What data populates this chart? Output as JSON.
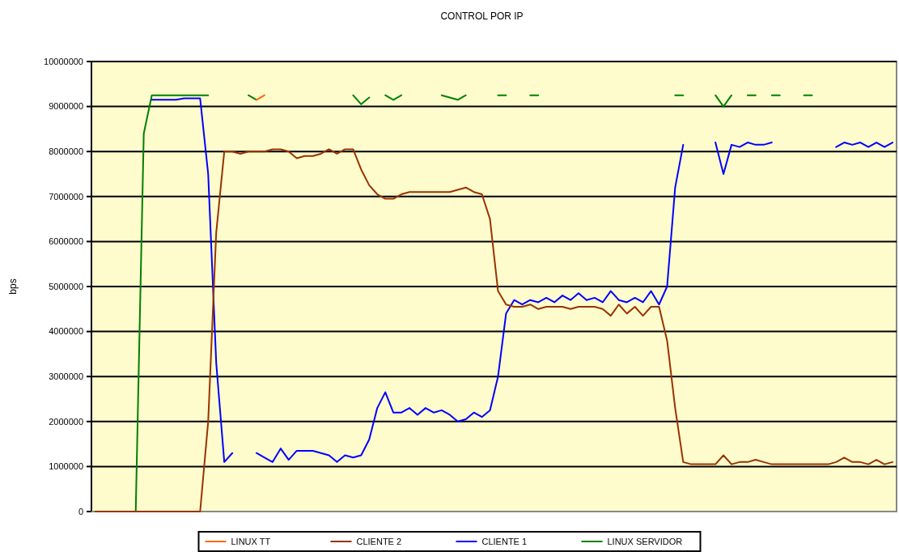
{
  "chart_data": {
    "type": "line",
    "title": "CONTROL POR IP",
    "ylabel": "bps",
    "categories": [
      null,
      null,
      null,
      null,
      null,
      null,
      null,
      null,
      null,
      null,
      null,
      null,
      null,
      null,
      null,
      null,
      null,
      null,
      null,
      null,
      null,
      null,
      null,
      null,
      null,
      null,
      null,
      null,
      null,
      null,
      null,
      null,
      null,
      null,
      null,
      null,
      null,
      null,
      null,
      null,
      null,
      null,
      null,
      null,
      null,
      null,
      null,
      null,
      null,
      null,
      null,
      null,
      null,
      null,
      null,
      null,
      null,
      null,
      null,
      null,
      null,
      null,
      null,
      null,
      null,
      null,
      null,
      null,
      null,
      null,
      null,
      null,
      null,
      null,
      null,
      null,
      null,
      null,
      null,
      null,
      null,
      null,
      null,
      null,
      null,
      null,
      null,
      null,
      null,
      null,
      null,
      null,
      null,
      null,
      null,
      null,
      null,
      null,
      null,
      null
    ],
    "ylim": [
      0,
      10000000
    ],
    "yticks": [
      0,
      1000000,
      2000000,
      3000000,
      4000000,
      5000000,
      6000000,
      7000000,
      8000000,
      9000000,
      10000000
    ],
    "grid": "y",
    "legend": "bottom",
    "line_style": "solid",
    "marker": "none",
    "series": [
      {
        "name": "LINUX TT",
        "color": "#ff6600",
        "values": [
          null,
          null,
          null,
          null,
          null,
          null,
          null,
          null,
          null,
          null,
          null,
          null,
          null,
          null,
          null,
          null,
          null,
          null,
          null,
          null,
          9150000,
          9250000,
          null,
          null,
          null,
          null,
          null,
          null,
          null,
          null,
          null,
          null,
          null,
          null,
          null,
          null,
          null,
          null,
          null,
          null,
          null,
          null,
          null,
          null,
          null,
          null,
          null,
          null,
          null,
          null,
          null,
          null,
          null,
          null,
          null,
          null,
          null,
          null,
          null,
          null,
          null,
          null,
          null,
          null,
          null,
          null,
          null,
          null,
          null,
          null,
          null,
          null,
          null,
          null,
          null,
          null,
          null,
          null,
          null,
          null,
          null,
          null,
          null,
          null,
          null,
          null,
          null,
          null,
          null,
          null,
          null,
          null,
          null,
          null,
          null,
          null,
          null,
          null,
          null,
          null
        ]
      },
      {
        "name": "CLIENTE 2",
        "color": "#993300",
        "values": [
          0,
          0,
          0,
          0,
          0,
          0,
          0,
          0,
          0,
          0,
          0,
          0,
          0,
          0,
          2000000,
          6200000,
          8000000,
          8000000,
          7950000,
          8000000,
          8000000,
          8000000,
          8050000,
          8050000,
          8000000,
          7850000,
          7900000,
          7900000,
          7950000,
          8050000,
          7950000,
          8050000,
          8050000,
          7600000,
          7250000,
          7050000,
          6950000,
          6950000,
          7050000,
          7100000,
          7100000,
          7100000,
          7100000,
          7100000,
          7100000,
          7150000,
          7200000,
          7100000,
          7050000,
          6500000,
          4900000,
          4600000,
          4550000,
          4550000,
          4600000,
          4500000,
          4550000,
          4550000,
          4550000,
          4500000,
          4550000,
          4550000,
          4550000,
          4500000,
          4350000,
          4600000,
          4400000,
          4550000,
          4350000,
          4550000,
          4550000,
          3800000,
          2300000,
          1100000,
          1050000,
          1050000,
          1050000,
          1050000,
          1250000,
          1050000,
          1100000,
          1100000,
          1150000,
          1100000,
          1050000,
          1050000,
          1050000,
          1050000,
          1050000,
          1050000,
          1050000,
          1050000,
          1100000,
          1200000,
          1100000,
          1100000,
          1050000,
          1150000,
          1050000,
          1100000
        ]
      },
      {
        "name": "CLIENTE 1",
        "color": "#0000ff",
        "values": [
          null,
          null,
          null,
          null,
          null,
          null,
          null,
          9150000,
          9150000,
          9150000,
          9150000,
          9180000,
          9180000,
          9180000,
          7500000,
          3300000,
          1100000,
          1300000,
          null,
          null,
          1300000,
          1200000,
          1100000,
          1400000,
          1150000,
          1350000,
          1350000,
          1350000,
          1300000,
          1250000,
          1100000,
          1250000,
          1200000,
          1250000,
          1600000,
          2300000,
          2650000,
          2200000,
          2200000,
          2300000,
          2150000,
          2300000,
          2200000,
          2250000,
          2150000,
          2000000,
          2050000,
          2200000,
          2100000,
          2250000,
          3000000,
          4400000,
          4700000,
          4600000,
          4700000,
          4650000,
          4750000,
          4650000,
          4800000,
          4700000,
          4850000,
          4700000,
          4750000,
          4650000,
          4900000,
          4700000,
          4650000,
          4750000,
          4650000,
          4900000,
          4600000,
          5000000,
          7200000,
          8150000,
          null,
          null,
          null,
          8200000,
          7500000,
          8150000,
          8100000,
          8200000,
          8150000,
          8150000,
          8200000,
          null,
          null,
          null,
          null,
          null,
          null,
          null,
          8100000,
          8200000,
          8150000,
          8200000,
          8100000,
          8200000,
          8100000,
          8200000
        ]
      },
      {
        "name": "LINUX SERVIDOR",
        "color": "#008000",
        "values": [
          null,
          null,
          null,
          null,
          null,
          0,
          8400000,
          9250000,
          9250000,
          9250000,
          9250000,
          9250000,
          9250000,
          9250000,
          9250000,
          null,
          null,
          null,
          null,
          9250000,
          9150000,
          null,
          null,
          null,
          null,
          null,
          null,
          null,
          null,
          null,
          null,
          null,
          9250000,
          9050000,
          9200000,
          null,
          9250000,
          9150000,
          9250000,
          null,
          null,
          null,
          null,
          9250000,
          9200000,
          9150000,
          9250000,
          null,
          null,
          null,
          9250000,
          9250000,
          null,
          null,
          9250000,
          9250000,
          null,
          null,
          null,
          null,
          null,
          null,
          null,
          null,
          null,
          null,
          null,
          null,
          null,
          null,
          null,
          null,
          9250000,
          9250000,
          null,
          null,
          null,
          9250000,
          9000000,
          9250000,
          null,
          9250000,
          9250000,
          null,
          9250000,
          9250000,
          null,
          null,
          9250000,
          9250000,
          null,
          null,
          null,
          null,
          null,
          null,
          null,
          null,
          null,
          null
        ]
      }
    ]
  }
}
